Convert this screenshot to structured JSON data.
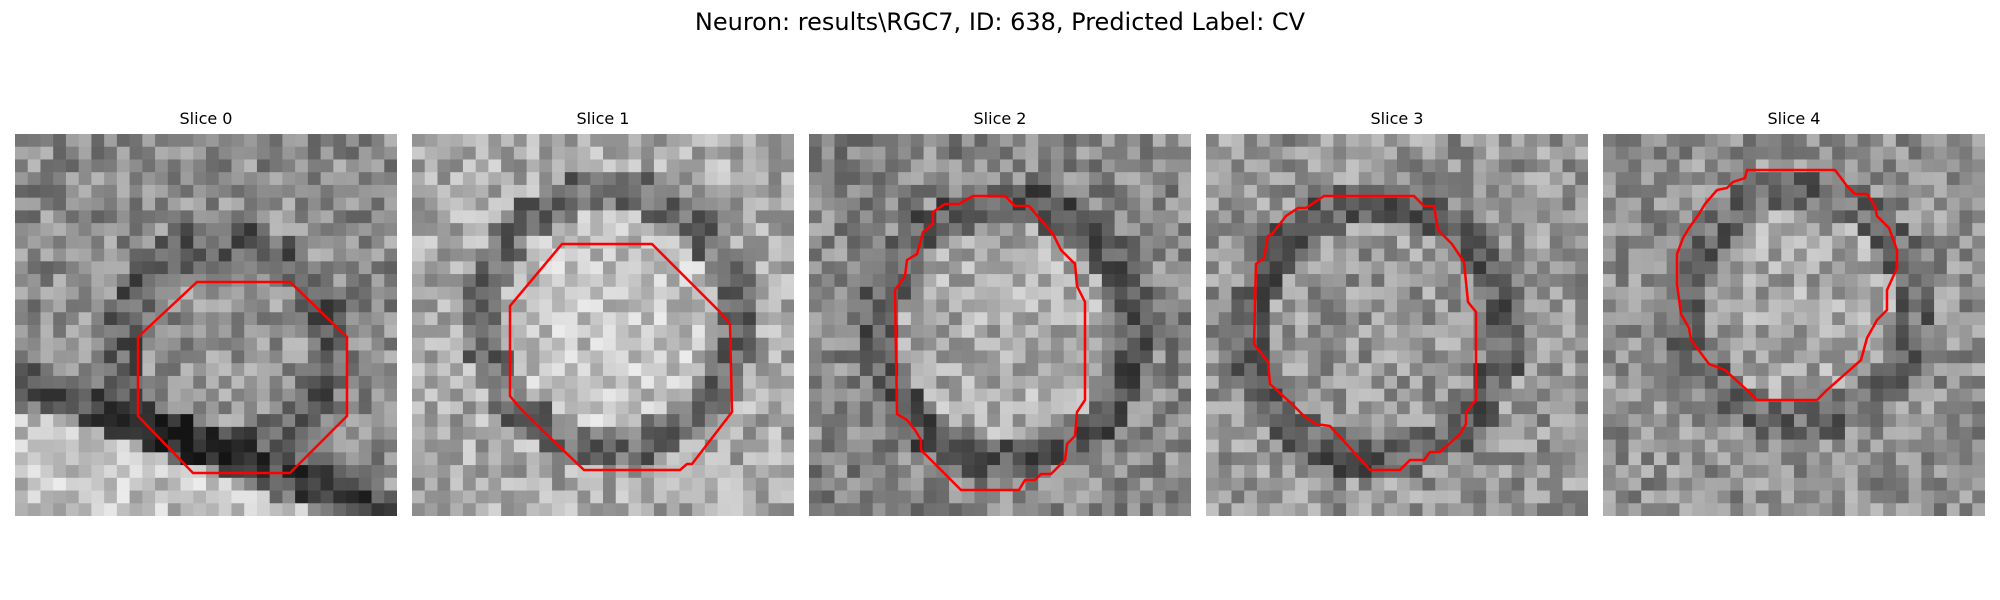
{
  "figure": {
    "title": "Neuron: results\\RGC7, ID: 638, Predicted Label: CV"
  },
  "contour_color": "#ff0000",
  "image_style": "grayscale",
  "panels": [
    {
      "title": "Slice 0"
    },
    {
      "title": "Slice 1"
    },
    {
      "title": "Slice 2"
    },
    {
      "title": "Slice 3"
    },
    {
      "title": "Slice 4"
    }
  ]
}
